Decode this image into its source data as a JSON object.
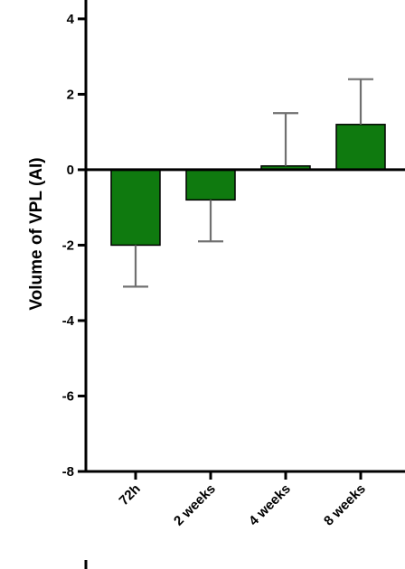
{
  "chart_data": {
    "type": "bar",
    "ylabel": "Volume of VPL (AI)",
    "xlabel": "",
    "ylim": [
      -8,
      4.5
    ],
    "yticks": [
      4,
      2,
      0,
      -2,
      -4,
      -6,
      -8
    ],
    "categories": [
      "72h",
      "2 weeks",
      "4 weeks",
      "8 weeks"
    ],
    "values": [
      -2.0,
      -0.8,
      0.1,
      1.2
    ],
    "error_bars": [
      1.1,
      1.1,
      1.4,
      1.2
    ],
    "colors": {
      "bar": "#0f7a0f",
      "bar_edge": "#000000",
      "error": "#707070",
      "axis": "#000000"
    }
  }
}
